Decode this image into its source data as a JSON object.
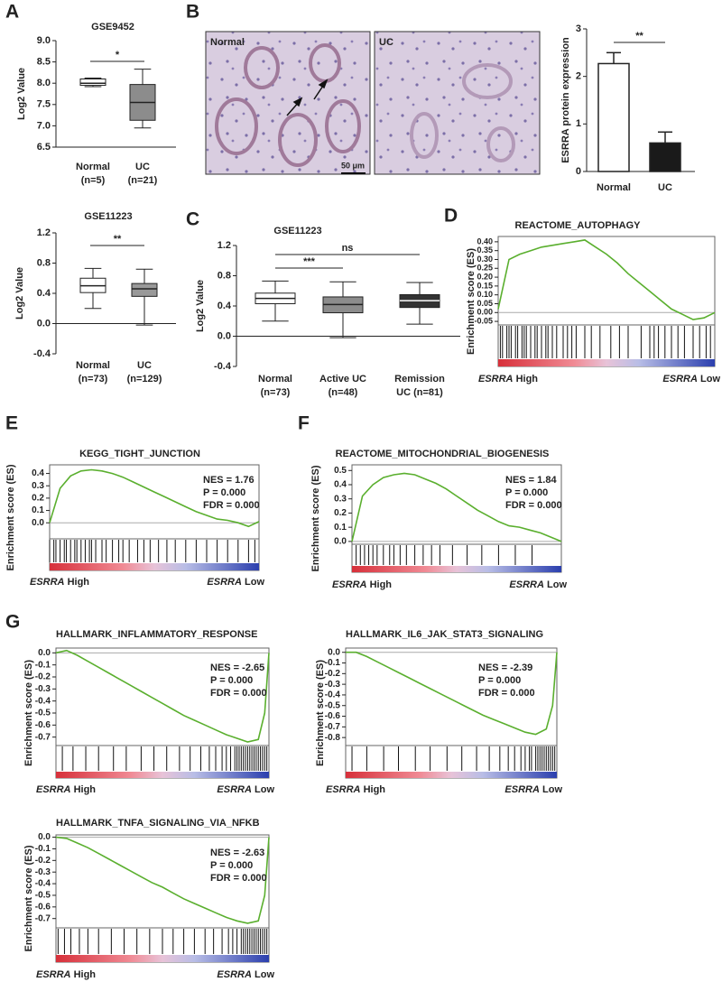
{
  "panel_labels": [
    "A",
    "B",
    "C",
    "D",
    "E",
    "F",
    "G"
  ],
  "micrographs": {
    "labels": [
      "Normal",
      "UC"
    ],
    "scale_bar": "50 μm"
  },
  "chart_data": [
    {
      "type": "box",
      "title": "GSE9452",
      "y_label": "Log2 Value",
      "categories": [
        [
          "Normal",
          "(n=5)"
        ],
        [
          "UC",
          "(n=21)"
        ]
      ],
      "boxes": [
        {
          "min": 7.92,
          "q1": 7.95,
          "median": 8.0,
          "q3": 8.1,
          "max": 8.12
        },
        {
          "min": 6.95,
          "q1": 7.13,
          "median": 7.55,
          "q3": 7.97,
          "max": 8.33
        }
      ],
      "colors": [
        "#ffffff",
        "#8c8c8c"
      ],
      "significance": [
        "*"
      ],
      "ylim": [
        6.5,
        9.0
      ],
      "yticks": [
        6.5,
        {
          "value": 7,
          "label": "7.0"
        },
        7.5,
        {
          "value": 8,
          "label": "8.0"
        },
        8.5,
        {
          "value": 9,
          "label": "9.0"
        }
      ]
    },
    {
      "type": "box",
      "title": "GSE11223",
      "y_label": "Log2 Value",
      "categories": [
        [
          "Normal",
          "(n=73)"
        ],
        [
          "UC",
          "(n=129)"
        ]
      ],
      "boxes": [
        {
          "min": 0.2,
          "q1": 0.41,
          "median": 0.5,
          "q3": 0.6,
          "max": 0.73
        },
        {
          "min": -0.02,
          "q1": 0.36,
          "median": 0.46,
          "q3": 0.53,
          "max": 0.72
        }
      ],
      "colors": [
        "#ffffff",
        "#999999"
      ],
      "significance": [
        "**"
      ],
      "ylim": [
        -0.4,
        1.2
      ],
      "yticks": [
        -0.4,
        {
          "value": 0,
          "label": "0.0"
        },
        0.4,
        0.8,
        1.2
      ]
    },
    {
      "type": "bar",
      "y_label": "ESRRA protein expression",
      "categories": [
        "Normal",
        "UC"
      ],
      "values": [
        2.27,
        0.6
      ],
      "errors": [
        0.23,
        0.23
      ],
      "colors": [
        "#ffffff",
        "#1a1a1a"
      ],
      "significance": [
        "**"
      ],
      "ylim": [
        0,
        3
      ],
      "yticks": [
        0,
        1,
        2,
        3
      ]
    },
    {
      "type": "box",
      "title": "GSE11223",
      "y_label": "Log2 Value",
      "categories": [
        [
          "Normal",
          "(n=73)"
        ],
        [
          "Active UC",
          "(n=48)"
        ],
        [
          "Remission",
          "UC (n=81)"
        ]
      ],
      "boxes": [
        {
          "min": 0.2,
          "q1": 0.43,
          "median": 0.5,
          "q3": 0.57,
          "max": 0.73
        },
        {
          "min": -0.02,
          "q1": 0.31,
          "median": 0.42,
          "q3": 0.52,
          "max": 0.72
        },
        {
          "min": 0.16,
          "q1": 0.38,
          "median": 0.47,
          "q3": 0.55,
          "max": 0.71
        }
      ],
      "colors": [
        "#ffffff",
        "#8c8c8c",
        "#333333"
      ],
      "significance": [
        "***",
        "ns"
      ],
      "ylim": [
        -0.4,
        1.2
      ],
      "yticks": [
        -0.4,
        {
          "value": 0,
          "label": "0.0"
        },
        0.4,
        0.8,
        1.2
      ]
    },
    {
      "type": "line",
      "title": "REACTOME_AUTOPHAGY",
      "y_label": "Enrichment score (ES)",
      "color": "#5aaf2e",
      "left_label": [
        "ESRRA",
        "High"
      ],
      "right_label": [
        "ESRRA",
        "Low"
      ],
      "x": [
        0,
        5,
        10,
        15,
        20,
        25,
        30,
        35,
        40,
        45,
        50,
        55,
        60,
        65,
        70,
        75,
        80,
        85,
        90,
        95,
        100
      ],
      "values": [
        0.02,
        0.3,
        0.33,
        0.35,
        0.37,
        0.38,
        0.39,
        0.4,
        0.41,
        0.37,
        0.33,
        0.28,
        0.22,
        0.17,
        0.12,
        0.07,
        0.02,
        -0.01,
        -0.04,
        -0.03,
        0.0
      ],
      "hits": [
        1,
        2,
        4,
        5,
        6,
        8,
        9,
        11,
        12,
        13,
        15,
        17,
        18,
        20,
        22,
        23,
        25,
        27,
        30,
        32,
        34,
        36,
        40,
        43,
        47,
        52,
        56,
        60,
        66,
        70,
        72,
        74,
        77,
        80,
        83,
        86,
        90,
        93,
        96,
        98
      ],
      "xlim": [
        0,
        100
      ],
      "ylim": [
        -0.07,
        0.43
      ],
      "yticks": [
        -0.05,
        {
          "value": 0,
          "label": "0.00"
        },
        0.05,
        {
          "value": 0.1,
          "label": "0.10"
        },
        0.15,
        {
          "value": 0.2,
          "label": "0.20"
        },
        0.25,
        {
          "value": 0.3,
          "label": "0.30"
        },
        0.35,
        {
          "value": 0.4,
          "label": "0.40"
        }
      ]
    },
    {
      "type": "line",
      "title": "KEGG_TIGHT_JUNCTION",
      "y_label": "Enrichment score (ES)",
      "color": "#5aaf2e",
      "stats": [
        "NES = 1.76",
        "P = 0.000",
        "FDR = 0.000"
      ],
      "left_label": [
        "ESRRA",
        "High"
      ],
      "right_label": [
        "ESRRA",
        "Low"
      ],
      "x": [
        0,
        5,
        10,
        15,
        20,
        25,
        30,
        35,
        40,
        45,
        50,
        55,
        60,
        65,
        70,
        75,
        80,
        85,
        90,
        95,
        100
      ],
      "values": [
        0.0,
        0.28,
        0.38,
        0.42,
        0.43,
        0.42,
        0.4,
        0.37,
        0.33,
        0.29,
        0.25,
        0.21,
        0.17,
        0.13,
        0.09,
        0.06,
        0.03,
        0.02,
        0.0,
        -0.03,
        0.01
      ],
      "hits": [
        0,
        2,
        3,
        5,
        7,
        8,
        10,
        12,
        13,
        15,
        17,
        19,
        20,
        22,
        25,
        27,
        30,
        33,
        35,
        38,
        42,
        45,
        48,
        52,
        56,
        60,
        65,
        70,
        75,
        80,
        85,
        90,
        95,
        98
      ],
      "xlim": [
        0,
        100
      ],
      "ylim": [
        -0.13,
        0.47
      ],
      "yticks": [
        {
          "value": 0,
          "label": "0.0"
        },
        0.1,
        0.2,
        0.3,
        0.4
      ]
    },
    {
      "type": "line",
      "title": "REACTOME_MITOCHONDRIAL_BIOGENESIS",
      "y_label": "Enrichment score (ES)",
      "color": "#5aaf2e",
      "stats": [
        "NES = 1.84",
        "P = 0.000",
        "FDR = 0.000"
      ],
      "left_label": [
        "ESRRA",
        "High"
      ],
      "right_label": [
        "ESRRA",
        "Low"
      ],
      "x": [
        0,
        5,
        10,
        15,
        20,
        25,
        30,
        35,
        40,
        45,
        50,
        55,
        60,
        65,
        70,
        75,
        80,
        85,
        90,
        95,
        100
      ],
      "values": [
        0.0,
        0.32,
        0.4,
        0.45,
        0.47,
        0.48,
        0.47,
        0.44,
        0.41,
        0.37,
        0.32,
        0.27,
        0.22,
        0.18,
        0.14,
        0.11,
        0.1,
        0.08,
        0.06,
        0.03,
        0.0
      ],
      "hits": [
        2,
        4,
        6,
        8,
        10,
        12,
        15,
        18,
        20,
        23,
        26,
        30,
        34,
        38,
        42,
        48,
        55,
        62,
        70,
        78,
        86
      ],
      "xlim": [
        0,
        100
      ],
      "ylim": [
        -0.02,
        0.54
      ],
      "yticks": [
        {
          "value": 0,
          "label": "0.0"
        },
        0.1,
        0.2,
        0.3,
        0.4,
        0.5
      ]
    },
    {
      "type": "line",
      "title": "HALLMARK_INFLAMMATORY_RESPONSE",
      "y_label": "Enrichment score (ES)",
      "color": "#5aaf2e",
      "stats": [
        "NES = -2.65",
        "P = 0.000",
        "FDR = 0.000"
      ],
      "left_label": [
        "ESRRA",
        "High"
      ],
      "right_label": [
        "ESRRA",
        "Low"
      ],
      "x": [
        0,
        5,
        10,
        15,
        20,
        25,
        30,
        35,
        40,
        45,
        50,
        55,
        60,
        65,
        70,
        75,
        80,
        85,
        90,
        95,
        98,
        100
      ],
      "values": [
        0.0,
        0.02,
        -0.02,
        -0.07,
        -0.12,
        -0.17,
        -0.22,
        -0.27,
        -0.32,
        -0.37,
        -0.42,
        -0.47,
        -0.52,
        -0.56,
        -0.6,
        -0.64,
        -0.68,
        -0.71,
        -0.74,
        -0.72,
        -0.5,
        0.0
      ],
      "hits": [
        3,
        8,
        14,
        20,
        27,
        33,
        40,
        46,
        52,
        58,
        63,
        68,
        72,
        75,
        78,
        80,
        82,
        84,
        85,
        86,
        87,
        88,
        89,
        90,
        91,
        92,
        93,
        94,
        95,
        96,
        97,
        98,
        99
      ],
      "xlim": [
        0,
        100
      ],
      "ylim": [
        -0.77,
        0.04
      ],
      "yticks": [
        {
          "value": 0,
          "label": "0.0"
        },
        -0.1,
        -0.2,
        -0.3,
        -0.4,
        -0.5,
        -0.6,
        -0.7
      ]
    },
    {
      "type": "line",
      "title": "HALLMARK_IL6_JAK_STAT3_SIGNALING",
      "y_label": "Enrichment score (ES)",
      "color": "#5aaf2e",
      "stats": [
        "NES = -2.39",
        "P = 0.000",
        "FDR = 0.000"
      ],
      "left_label": [
        "ESRRA",
        "High"
      ],
      "right_label": [
        "ESRRA",
        "Low"
      ],
      "x": [
        0,
        5,
        10,
        15,
        20,
        25,
        30,
        35,
        40,
        45,
        50,
        55,
        60,
        65,
        70,
        75,
        80,
        85,
        90,
        95,
        98,
        100
      ],
      "values": [
        0.0,
        0.0,
        -0.04,
        -0.09,
        -0.14,
        -0.19,
        -0.24,
        -0.29,
        -0.34,
        -0.39,
        -0.44,
        -0.49,
        -0.54,
        -0.59,
        -0.63,
        -0.67,
        -0.71,
        -0.75,
        -0.77,
        -0.72,
        -0.5,
        0.0
      ],
      "hits": [
        3,
        10,
        18,
        25,
        33,
        40,
        48,
        55,
        62,
        68,
        73,
        77,
        80,
        83,
        85,
        87,
        88,
        90,
        91,
        92,
        93,
        94,
        95,
        96,
        97,
        98,
        99
      ],
      "xlim": [
        0,
        100
      ],
      "ylim": [
        -0.875,
        0.04
      ],
      "yticks": [
        {
          "value": 0,
          "label": "0.0"
        },
        -0.1,
        -0.2,
        -0.3,
        -0.4,
        -0.5,
        -0.6,
        -0.7,
        -0.8
      ]
    },
    {
      "type": "line",
      "title": "HALLMARK_TNFA_SIGNALING_VIA_NFKB",
      "y_label": "Enrichment score (ES)",
      "color": "#5aaf2e",
      "stats": [
        "NES = -2.63",
        "P = 0.000",
        "FDR = 0.000"
      ],
      "left_label": [
        "ESRRA",
        "High"
      ],
      "right_label": [
        "ESRRA",
        "Low"
      ],
      "x": [
        0,
        5,
        10,
        15,
        20,
        25,
        30,
        35,
        40,
        45,
        50,
        55,
        60,
        65,
        70,
        75,
        80,
        85,
        90,
        95,
        98,
        100
      ],
      "values": [
        0.0,
        -0.01,
        -0.05,
        -0.09,
        -0.14,
        -0.19,
        -0.24,
        -0.29,
        -0.34,
        -0.39,
        -0.43,
        -0.48,
        -0.53,
        -0.57,
        -0.61,
        -0.65,
        -0.69,
        -0.72,
        -0.74,
        -0.72,
        -0.5,
        0.0
      ],
      "hits": [
        1,
        4,
        7,
        11,
        15,
        20,
        26,
        32,
        38,
        44,
        50,
        55,
        60,
        65,
        70,
        74,
        78,
        81,
        83,
        85,
        87,
        88,
        89,
        90,
        91,
        92,
        93,
        94,
        95,
        96,
        97,
        98,
        99
      ],
      "xlim": [
        0,
        100
      ],
      "ylim": [
        -0.78,
        0.02
      ],
      "yticks": [
        {
          "value": 0,
          "label": "0.0"
        },
        -0.1,
        -0.2,
        -0.3,
        -0.4,
        -0.5,
        -0.6,
        -0.7
      ]
    }
  ]
}
